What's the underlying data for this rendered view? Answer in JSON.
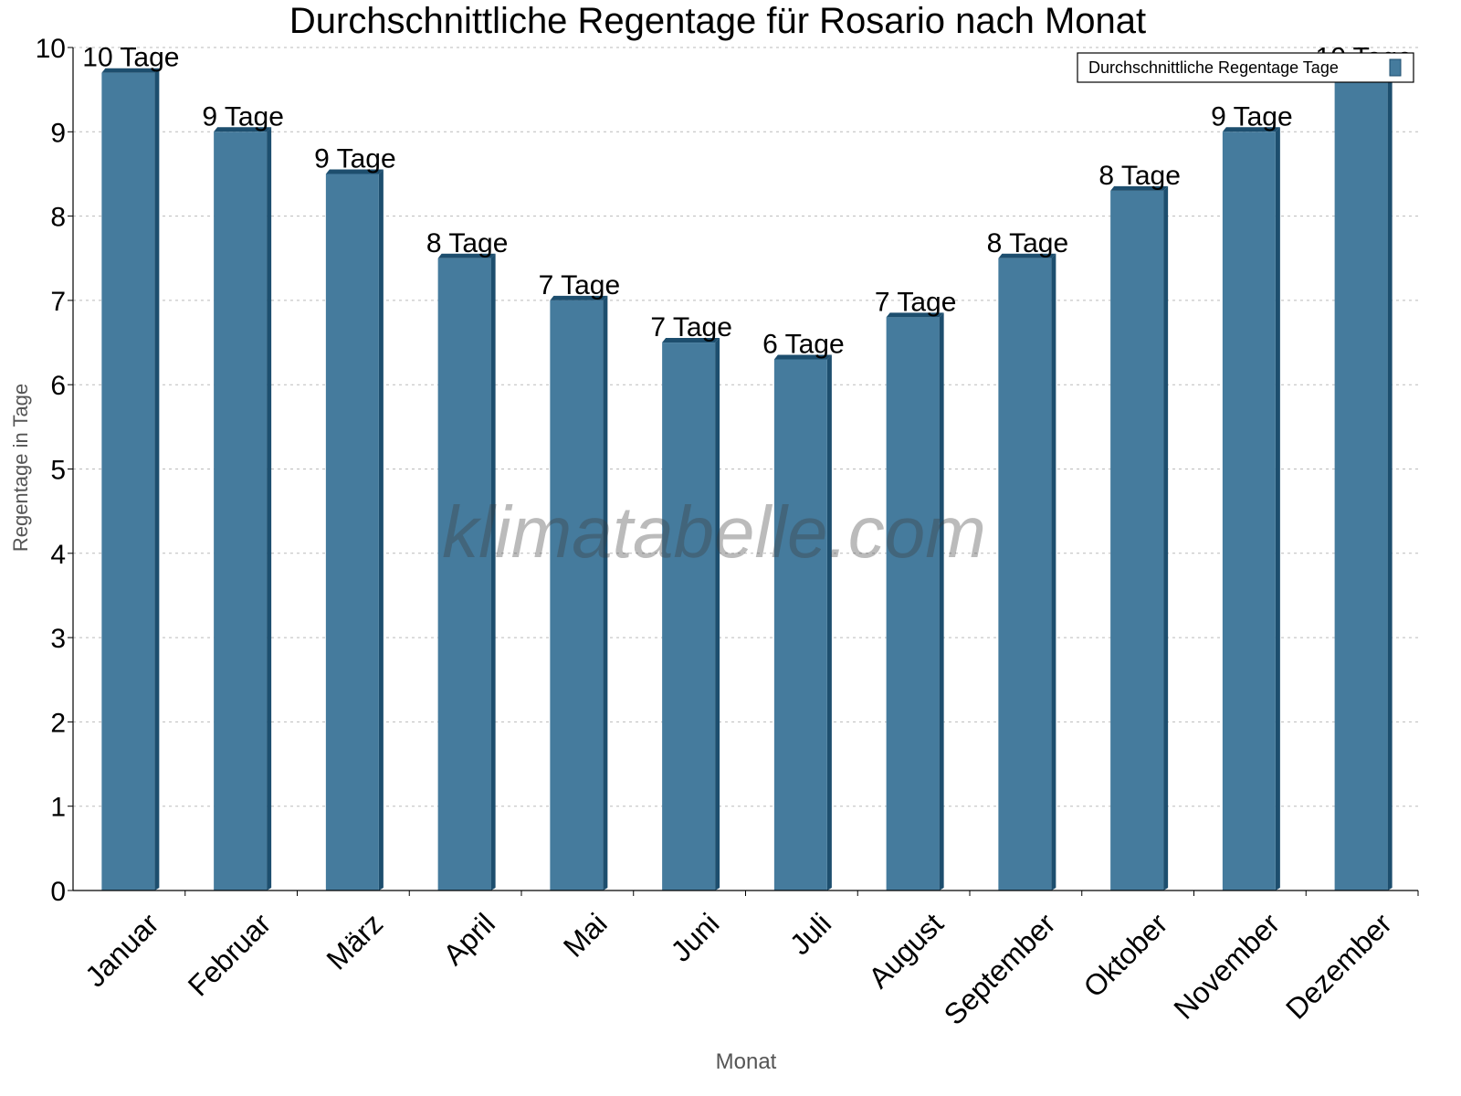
{
  "chart_data": {
    "type": "bar",
    "title": "Durchschnittliche Regentage für Rosario nach Monat",
    "xlabel": "Monat",
    "ylabel": "Regentage in Tage",
    "ylim": [
      0,
      10
    ],
    "yticks": [
      0,
      1,
      2,
      3,
      4,
      5,
      6,
      7,
      8,
      9,
      10
    ],
    "grid": true,
    "legend_position": "top-right",
    "categories": [
      "Januar",
      "Februar",
      "März",
      "April",
      "Mai",
      "Juni",
      "Juli",
      "August",
      "September",
      "Oktober",
      "November",
      "Dezember"
    ],
    "series": [
      {
        "name": "Durchschnittliche Regentage Tage",
        "values": [
          9.7,
          9.0,
          8.5,
          7.5,
          7.0,
          6.5,
          6.3,
          6.8,
          7.5,
          8.3,
          9.0,
          9.7
        ],
        "data_labels": [
          "10 Tage",
          "9 Tage",
          "9 Tage",
          "8 Tage",
          "7 Tage",
          "7 Tage",
          "6 Tage",
          "7 Tage",
          "8 Tage",
          "8 Tage",
          "9 Tage",
          "10 Tage"
        ],
        "color": "#457b9d",
        "side_color": "#1d4e6e"
      }
    ],
    "watermark": "klimatabelle.com"
  }
}
